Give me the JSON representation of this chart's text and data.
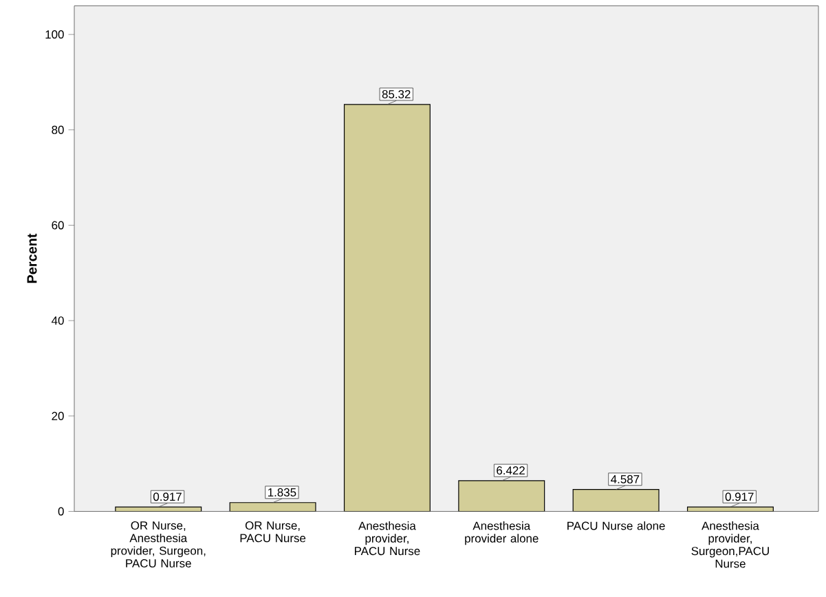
{
  "chart_data": {
    "type": "bar",
    "ylabel": "Percent",
    "categories": [
      "OR Nurse, Anesthesia provider, Surgeon, PACU Nurse",
      "OR Nurse, PACU Nurse",
      "Anesthesia provider, PACU Nurse",
      "Anesthesia provider alone",
      "PACU Nurse alone",
      "Anesthesia provider, Surgeon,PACU Nurse"
    ],
    "values": [
      0.917,
      1.835,
      85.32,
      6.422,
      4.587,
      0.917
    ],
    "color": "#d3ce98",
    "ylim": [
      0,
      106
    ],
    "yticks": [
      0,
      20,
      40,
      60,
      80,
      100
    ],
    "data_labels": true
  }
}
